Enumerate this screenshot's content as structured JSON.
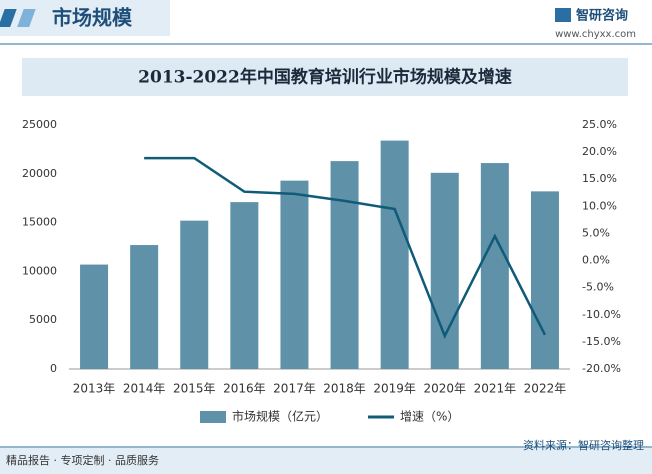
{
  "header": {
    "section": "市场规模",
    "brand": "智研咨询",
    "url": "www.chyxx.com"
  },
  "footer": {
    "left": "精品报告 · 专项定制 · 品质服务",
    "right": "资料来源：智研咨询整理"
  },
  "chart_data": {
    "type": "bar",
    "title": "2013-2022年中国教育培训行业市场规模及增速",
    "categories": [
      "2013年",
      "2014年",
      "2015年",
      "2016年",
      "2017年",
      "2018年",
      "2019年",
      "2020年",
      "2021年",
      "2022年"
    ],
    "series": [
      {
        "name": "市场规模（亿元）",
        "color": "#5f92a9",
        "values": [
          10700,
          12700,
          15200,
          17100,
          19300,
          21300,
          23400,
          20100,
          21100,
          18200
        ]
      },
      {
        "name": "增速（%）",
        "type": "line",
        "axis": "y2",
        "color": "#0f5b78",
        "values": [
          null,
          18.9,
          18.9,
          12.7,
          12.3,
          11.0,
          9.5,
          -13.9,
          4.5,
          -13.7
        ]
      }
    ],
    "ylim": [
      0,
      25000
    ],
    "yticks": [
      0,
      5000,
      10000,
      15000,
      20000,
      25000
    ],
    "y2lim": [
      -20,
      25
    ],
    "y2ticks": [
      {
        "value": -20,
        "label": "-20.0%"
      },
      {
        "value": -15,
        "label": "-15.0%"
      },
      {
        "value": -10,
        "label": "-10.0%"
      },
      {
        "value": -5,
        "label": "-5.0%"
      },
      {
        "value": 0,
        "label": "0.0%"
      },
      {
        "value": 5,
        "label": "5.0%"
      },
      {
        "value": 10,
        "label": "10.0%"
      },
      {
        "value": 15,
        "label": "15.0%"
      },
      {
        "value": 20,
        "label": "20.0%"
      },
      {
        "value": 25,
        "label": "25.0%"
      }
    ],
    "grid": false,
    "legend": "bottom"
  }
}
